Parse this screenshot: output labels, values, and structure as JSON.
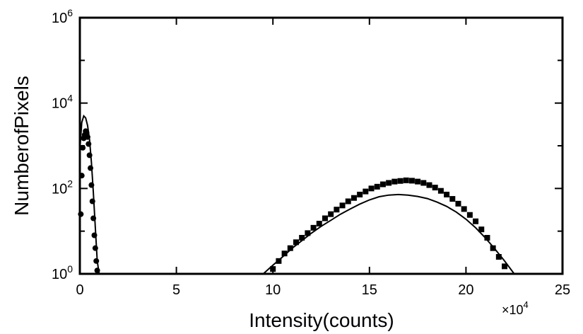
{
  "chart_data": {
    "type": "scatter",
    "xlabel": "Intensity(counts)",
    "ylabel": "NumberofPixels",
    "x_multiplier_label": "×10",
    "x_multiplier_exponent": "4",
    "xlim": [
      0,
      25
    ],
    "ylim": [
      1,
      1000000
    ],
    "y_scale": "log",
    "grid": false,
    "x_ticks": [
      {
        "value": 0,
        "label": "0"
      },
      {
        "value": 5,
        "label": "5"
      },
      {
        "value": 10,
        "label": "10"
      },
      {
        "value": 15,
        "label": "15"
      },
      {
        "value": 20,
        "label": "20"
      },
      {
        "value": 25,
        "label": "25"
      }
    ],
    "y_ticks": [
      {
        "value": 1,
        "base": "10",
        "exp": "0"
      },
      {
        "value": 100,
        "base": "10",
        "exp": "2"
      },
      {
        "value": 10000,
        "base": "10",
        "exp": "4"
      },
      {
        "value": 1000000,
        "base": "10",
        "exp": "6"
      }
    ],
    "series": [
      {
        "marker": "circle",
        "color": "#000000",
        "x": [
          0.05,
          0.1,
          0.15,
          0.2,
          0.25,
          0.3,
          0.35,
          0.4,
          0.45,
          0.5,
          0.55,
          0.6,
          0.65,
          0.7,
          0.75,
          0.8,
          0.85,
          0.9
        ],
        "y": [
          25,
          200,
          900,
          1500,
          1800,
          2200,
          2000,
          1600,
          1100,
          600,
          300,
          120,
          50,
          20,
          8,
          4,
          2,
          1.2
        ]
      },
      {
        "marker": "square",
        "color": "#000000",
        "x": [
          10.0,
          10.3,
          10.6,
          10.9,
          11.2,
          11.5,
          11.8,
          12.1,
          12.4,
          12.7,
          13.0,
          13.3,
          13.6,
          13.9,
          14.2,
          14.5,
          14.8,
          15.1,
          15.4,
          15.7,
          16.0,
          16.3,
          16.6,
          16.9,
          17.2,
          17.5,
          17.8,
          18.1,
          18.4,
          18.7,
          19.0,
          19.3,
          19.6,
          19.9,
          20.2,
          20.5,
          20.8,
          21.1,
          21.4,
          21.7,
          22.0
        ],
        "y": [
          1.3,
          2,
          3,
          4,
          5.5,
          7,
          9,
          12,
          15,
          20,
          25,
          32,
          40,
          50,
          60,
          72,
          85,
          100,
          110,
          125,
          135,
          145,
          150,
          155,
          152,
          145,
          135,
          120,
          105,
          88,
          72,
          57,
          44,
          33,
          24,
          17,
          11,
          7,
          4,
          2.5,
          1.5
        ]
      },
      {
        "marker": "line",
        "color": "#000000",
        "x": [
          0,
          0.1,
          0.2,
          0.3,
          0.4,
          0.5,
          0.6,
          0.7,
          0.8,
          0.9,
          1.0
        ],
        "y": [
          800,
          3500,
          5000,
          4500,
          3000,
          1400,
          400,
          80,
          12,
          2,
          1
        ]
      },
      {
        "marker": "line",
        "color": "#000000",
        "x": [
          9.5,
          10.0,
          10.5,
          11.0,
          11.5,
          12.0,
          12.5,
          13.0,
          13.5,
          14.0,
          14.5,
          15.0,
          15.5,
          16.0,
          16.5,
          17.0,
          17.5,
          18.0,
          18.5,
          19.0,
          19.5,
          20.0,
          20.5,
          21.0,
          21.5,
          22.0,
          22.5
        ],
        "y": [
          1,
          1.6,
          2.5,
          4,
          6,
          9,
          13,
          18,
          25,
          33,
          43,
          54,
          64,
          70,
          72,
          70,
          65,
          58,
          48,
          38,
          28,
          19,
          12,
          7,
          3.8,
          2,
          1
        ]
      }
    ]
  }
}
